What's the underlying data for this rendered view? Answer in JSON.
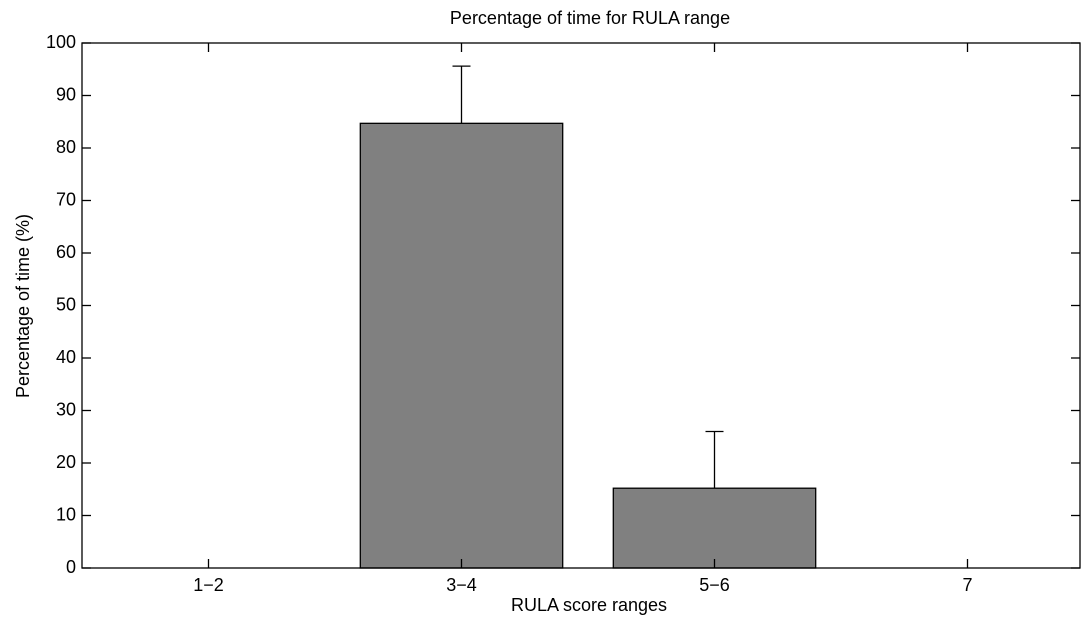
{
  "chart_data": {
    "type": "bar",
    "title": "Percentage of time for RULA range",
    "x_label": "RULA score ranges",
    "y_label": "Percentage of time (%)",
    "categories": [
      "1−2",
      "3−4",
      "5−6",
      "7"
    ],
    "values": [
      0,
      84.7,
      15.2,
      0
    ],
    "errors": [
      null,
      10.9,
      10.8,
      null
    ],
    "color": "#808080",
    "ylim": [
      0,
      100
    ],
    "yticks": [
      0,
      10,
      20,
      30,
      40,
      50,
      60,
      70,
      80,
      90,
      100
    ]
  }
}
